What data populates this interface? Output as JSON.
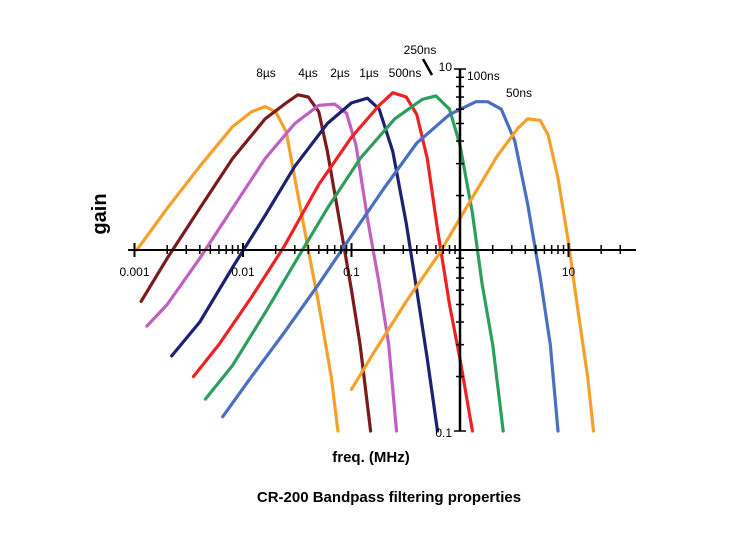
{
  "chart_data": {
    "type": "line",
    "title": "CR-200 Bandpass filtering properties",
    "xlabel": "freq. (MHz)",
    "ylabel": "gain",
    "xscale": "log",
    "yscale": "log",
    "xlim": [
      0.001,
      30
    ],
    "ylim": [
      0.1,
      10
    ],
    "x_tick_labels": [
      {
        "value": 0.001,
        "label": "0.001"
      },
      {
        "value": 0.01,
        "label": "0.01"
      },
      {
        "value": 0.1,
        "label": "0.1"
      },
      {
        "value": 10,
        "label": "10"
      }
    ],
    "y_tick_labels": [
      {
        "value": 10,
        "label": "10"
      },
      {
        "value": 0.1,
        "label": "0.1"
      }
    ],
    "y_axis_at_x": 1,
    "x_axis_at_y": 1,
    "grid": false,
    "legend": "none",
    "series": [
      {
        "name": "8µs",
        "label": "8µs",
        "color": "#f5a02a",
        "points": [
          [
            0.00105,
            1.0
          ],
          [
            0.002,
            1.7
          ],
          [
            0.004,
            2.9
          ],
          [
            0.008,
            4.8
          ],
          [
            0.012,
            5.8
          ],
          [
            0.016,
            6.2
          ],
          [
            0.02,
            5.8
          ],
          [
            0.025,
            4.5
          ],
          [
            0.03,
            2.5
          ],
          [
            0.04,
            1.0
          ],
          [
            0.05,
            0.5
          ],
          [
            0.065,
            0.2
          ],
          [
            0.075,
            0.1
          ]
        ]
      },
      {
        "name": "4µs",
        "label": "4µs",
        "color": "#7b1a1a",
        "points": [
          [
            0.00115,
            0.52
          ],
          [
            0.002,
            0.9
          ],
          [
            0.004,
            1.7
          ],
          [
            0.008,
            3.2
          ],
          [
            0.016,
            5.3
          ],
          [
            0.025,
            6.5
          ],
          [
            0.032,
            7.2
          ],
          [
            0.04,
            7.0
          ],
          [
            0.05,
            5.8
          ],
          [
            0.06,
            3.5
          ],
          [
            0.08,
            1.3
          ],
          [
            0.1,
            0.6
          ],
          [
            0.12,
            0.3
          ],
          [
            0.15,
            0.1
          ]
        ]
      },
      {
        "name": "2µs",
        "label": "2µs",
        "color": "#c060c0",
        "points": [
          [
            0.0013,
            0.38
          ],
          [
            0.002,
            0.5
          ],
          [
            0.004,
            0.9
          ],
          [
            0.008,
            1.7
          ],
          [
            0.016,
            3.2
          ],
          [
            0.03,
            5.0
          ],
          [
            0.05,
            6.3
          ],
          [
            0.07,
            6.4
          ],
          [
            0.09,
            5.7
          ],
          [
            0.11,
            3.8
          ],
          [
            0.14,
            1.5
          ],
          [
            0.18,
            0.65
          ],
          [
            0.22,
            0.3
          ],
          [
            0.26,
            0.1
          ]
        ]
      },
      {
        "name": "1µs",
        "label": "1µs",
        "color": "#1e2070",
        "points": [
          [
            0.0022,
            0.26
          ],
          [
            0.004,
            0.4
          ],
          [
            0.008,
            0.8
          ],
          [
            0.016,
            1.55
          ],
          [
            0.03,
            2.9
          ],
          [
            0.06,
            5.0
          ],
          [
            0.1,
            6.5
          ],
          [
            0.14,
            6.9
          ],
          [
            0.18,
            6.0
          ],
          [
            0.24,
            3.5
          ],
          [
            0.32,
            1.4
          ],
          [
            0.4,
            0.6
          ],
          [
            0.5,
            0.25
          ],
          [
            0.62,
            0.1
          ]
        ]
      },
      {
        "name": "500ns",
        "label": "500ns",
        "color": "#ee2222",
        "points": [
          [
            0.0035,
            0.2
          ],
          [
            0.006,
            0.3
          ],
          [
            0.012,
            0.55
          ],
          [
            0.024,
            1.05
          ],
          [
            0.05,
            2.3
          ],
          [
            0.1,
            4.2
          ],
          [
            0.18,
            6.3
          ],
          [
            0.24,
            7.4
          ],
          [
            0.32,
            7.0
          ],
          [
            0.4,
            5.6
          ],
          [
            0.5,
            3.2
          ],
          [
            0.62,
            1.3
          ],
          [
            0.8,
            0.5
          ],
          [
            1.0,
            0.25
          ],
          [
            1.3,
            0.1
          ]
        ]
      },
      {
        "name": "250ns",
        "label": "250ns",
        "color": "#2e9e5e",
        "points": [
          [
            0.0045,
            0.15
          ],
          [
            0.008,
            0.23
          ],
          [
            0.016,
            0.45
          ],
          [
            0.03,
            0.85
          ],
          [
            0.06,
            1.7
          ],
          [
            0.12,
            3.2
          ],
          [
            0.25,
            5.3
          ],
          [
            0.45,
            6.8
          ],
          [
            0.6,
            7.1
          ],
          [
            0.8,
            6.0
          ],
          [
            1.0,
            3.8
          ],
          [
            1.3,
            1.6
          ],
          [
            1.6,
            0.65
          ],
          [
            2.0,
            0.3
          ],
          [
            2.5,
            0.1
          ]
        ]
      },
      {
        "name": "100ns",
        "label": "100ns",
        "color": "#4a6ec0",
        "points": [
          [
            0.0065,
            0.12
          ],
          [
            0.012,
            0.2
          ],
          [
            0.024,
            0.35
          ],
          [
            0.05,
            0.65
          ],
          [
            0.1,
            1.2
          ],
          [
            0.2,
            2.2
          ],
          [
            0.4,
            3.9
          ],
          [
            0.8,
            5.6
          ],
          [
            1.4,
            6.6
          ],
          [
            1.8,
            6.6
          ],
          [
            2.4,
            6.0
          ],
          [
            3.2,
            4.0
          ],
          [
            4.2,
            1.8
          ],
          [
            5.5,
            0.7
          ],
          [
            6.8,
            0.3
          ],
          [
            8.0,
            0.1
          ]
        ]
      },
      {
        "name": "50ns",
        "label": "50ns",
        "color": "#f5a02a",
        "points": [
          [
            0.1,
            0.17
          ],
          [
            0.16,
            0.27
          ],
          [
            0.32,
            0.52
          ],
          [
            0.64,
            0.95
          ],
          [
            1.2,
            1.8
          ],
          [
            2.2,
            3.3
          ],
          [
            3.4,
            4.7
          ],
          [
            4.2,
            5.3
          ],
          [
            5.5,
            5.2
          ],
          [
            6.5,
            4.3
          ],
          [
            8.0,
            2.5
          ],
          [
            10,
            1.1
          ],
          [
            12,
            0.5
          ],
          [
            15,
            0.2
          ],
          [
            17,
            0.1
          ]
        ]
      }
    ]
  }
}
